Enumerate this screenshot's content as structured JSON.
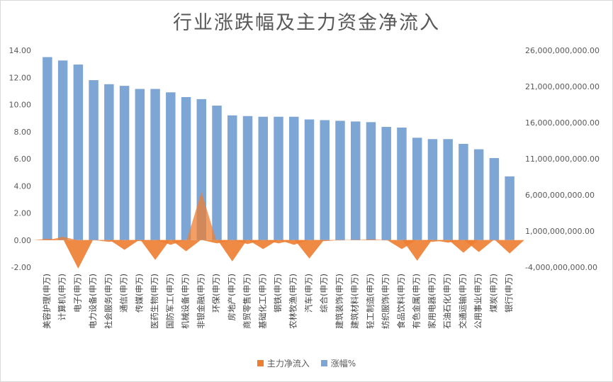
{
  "chart_data": {
    "type": "bar",
    "title": "行业涨跌幅及主力资金净流入",
    "categories": [
      "美容护理(申万)",
      "计算机(申万)",
      "电子(申万)",
      "电力设备(申万)",
      "社会服务(申万)",
      "通信(申万)",
      "传媒(申万)",
      "医药生物(申万)",
      "国防军工(申万)",
      "机械设备(申万)",
      "非银金融(申万)",
      "环保(申万)",
      "房地产(申万)",
      "商贸零售(申万)",
      "基础化工(申万)",
      "钢铁(申万)",
      "农林牧渔(申万)",
      "汽车(申万)",
      "综合(申万)",
      "建筑装饰(申万)",
      "建筑材料(申万)",
      "轻工制造(申万)",
      "纺织服饰(申万)",
      "食品饮料(申万)",
      "有色金属(申万)",
      "家用电器(申万)",
      "石油石化(申万)",
      "交通运输(申万)",
      "公用事业(申万)",
      "煤炭(申万)",
      "银行(申万)"
    ],
    "series": [
      {
        "name": "主力净流入",
        "type": "area",
        "axis": "right",
        "color": "#ed7d31",
        "values": [
          -80000000,
          200000000,
          -4200000000,
          -300000000,
          -500000000,
          -1600000000,
          -400000000,
          -3000000000,
          -900000000,
          -1800000000,
          6400000000,
          -700000000,
          -3200000000,
          -800000000,
          -1500000000,
          -700000000,
          -900000000,
          -2800000000,
          -400000000,
          -300000000,
          -200000000,
          -150000000,
          -300000000,
          -1500000000,
          -3100000000,
          -500000000,
          -600000000,
          -2000000000,
          -1900000000,
          -300000000,
          -2100000000
        ]
      },
      {
        "name": "涨幅%",
        "type": "bar",
        "axis": "left",
        "color": "#7ea6d4",
        "values": [
          13.5,
          13.25,
          12.95,
          11.8,
          11.5,
          11.38,
          11.15,
          11.15,
          10.9,
          10.55,
          10.4,
          9.92,
          9.2,
          9.15,
          9.1,
          9.1,
          9.1,
          8.9,
          8.85,
          8.8,
          8.75,
          8.7,
          8.35,
          8.3,
          7.55,
          7.45,
          7.45,
          7.1,
          6.7,
          6.05,
          4.7
        ]
      }
    ],
    "y_left": {
      "ylim": [
        -2,
        14
      ],
      "ticks": [
        -2,
        0,
        2,
        4,
        6,
        8,
        10,
        12,
        14
      ],
      "tick_labels": [
        "-2.00",
        "0.00",
        "2.00",
        "4.00",
        "6.00",
        "8.00",
        "10.00",
        "12.00",
        "14.00"
      ]
    },
    "y_right": {
      "ylim": [
        -4000000000,
        26000000000
      ],
      "ticks": [
        -4000000000,
        1000000000,
        6000000000,
        11000000000,
        16000000000,
        21000000000,
        26000000000
      ],
      "tick_labels": [
        "-4,000,000,000.00",
        "1,000,000,000.00",
        "6,000,000,000.00",
        "11,000,000,000.00",
        "16,000,000,000.00",
        "21,000,000,000.00",
        "26,000,000,000.00"
      ]
    },
    "grid": false,
    "legend_position": "bottom",
    "legend": [
      "主力净流入",
      "涨幅%"
    ]
  }
}
